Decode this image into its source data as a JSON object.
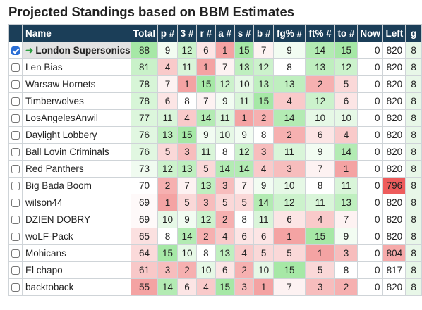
{
  "title": "Projected Standings based on BBM Estimates",
  "headers": {
    "name": "Name",
    "total": "Total",
    "p": "p #",
    "three": "3 #",
    "r": "r #",
    "a": "a #",
    "s": "s #",
    "b": "b #",
    "fg": "fg% #",
    "ft": "ft% #",
    "to": "to #",
    "now": "Now",
    "left": "Left",
    "extra": "g"
  },
  "colors": {
    "header_bg": "#1b3e58",
    "high": "#a6e8a6",
    "low": "#f4a3a3",
    "neutral": "#ffffff",
    "left_low": "#ee5c5c",
    "left_mid": "#f6aaaa",
    "arrow": "#2ea043"
  },
  "rows": [
    {
      "checked": true,
      "arrow": "➜",
      "name": "London Supersonics",
      "total": "88",
      "p": "9",
      "three": "12",
      "r": "6",
      "a": "1",
      "s": "15",
      "b": "7",
      "fg": "9",
      "ft": "14",
      "to": "15",
      "now": "0",
      "left": "820",
      "extra": "8"
    },
    {
      "checked": false,
      "name": "Len Bias",
      "total": "81",
      "p": "4",
      "three": "11",
      "r": "1",
      "a": "7",
      "s": "13",
      "b": "12",
      "fg": "8",
      "ft": "13",
      "to": "12",
      "now": "0",
      "left": "820",
      "extra": "8"
    },
    {
      "checked": false,
      "name": "Warsaw Hornets",
      "total": "78",
      "p": "7",
      "three": "1",
      "r": "15",
      "a": "12",
      "s": "10",
      "b": "13",
      "fg": "13",
      "ft": "2",
      "to": "5",
      "now": "0",
      "left": "820",
      "extra": "8"
    },
    {
      "checked": false,
      "name": "Timberwolves",
      "total": "78",
      "p": "6",
      "three": "8",
      "r": "7",
      "a": "9",
      "s": "11",
      "b": "15",
      "fg": "4",
      "ft": "12",
      "to": "6",
      "now": "0",
      "left": "820",
      "extra": "8"
    },
    {
      "checked": false,
      "name": "LosAngelesAnwil",
      "total": "77",
      "p": "11",
      "three": "4",
      "r": "14",
      "a": "11",
      "s": "1",
      "b": "2",
      "fg": "14",
      "ft": "10",
      "to": "10",
      "now": "0",
      "left": "820",
      "extra": "8"
    },
    {
      "checked": false,
      "name": "Daylight Lobbery",
      "total": "76",
      "p": "13",
      "three": "15",
      "r": "9",
      "a": "10",
      "s": "9",
      "b": "8",
      "fg": "2",
      "ft": "6",
      "to": "4",
      "now": "0",
      "left": "820",
      "extra": "8"
    },
    {
      "checked": false,
      "name": "Ball Lovin Criminals",
      "total": "76",
      "p": "5",
      "three": "3",
      "r": "11",
      "a": "8",
      "s": "12",
      "b": "3",
      "fg": "11",
      "ft": "9",
      "to": "14",
      "now": "0",
      "left": "820",
      "extra": "8"
    },
    {
      "checked": false,
      "name": "Red Panthers",
      "total": "73",
      "p": "12",
      "three": "13",
      "r": "5",
      "a": "14",
      "s": "14",
      "b": "4",
      "fg": "3",
      "ft": "7",
      "to": "1",
      "now": "0",
      "left": "820",
      "extra": "8"
    },
    {
      "checked": false,
      "name": "Big Bada Boom",
      "total": "70",
      "p": "2",
      "three": "7",
      "r": "13",
      "a": "3",
      "s": "7",
      "b": "9",
      "fg": "10",
      "ft": "8",
      "to": "11",
      "now": "0",
      "left": "796",
      "extra": "8"
    },
    {
      "checked": false,
      "name": "wilson44",
      "total": "69",
      "p": "1",
      "three": "5",
      "r": "3",
      "a": "5",
      "s": "5",
      "b": "14",
      "fg": "12",
      "ft": "11",
      "to": "13",
      "now": "0",
      "left": "820",
      "extra": "8"
    },
    {
      "checked": false,
      "name": "DZIEN DOBRY",
      "total": "69",
      "p": "10",
      "three": "9",
      "r": "12",
      "a": "2",
      "s": "8",
      "b": "11",
      "fg": "6",
      "ft": "4",
      "to": "7",
      "now": "0",
      "left": "820",
      "extra": "8"
    },
    {
      "checked": false,
      "name": "woLF-Pack",
      "total": "65",
      "p": "8",
      "three": "14",
      "r": "2",
      "a": "4",
      "s": "6",
      "b": "6",
      "fg": "1",
      "ft": "15",
      "to": "9",
      "now": "0",
      "left": "820",
      "extra": "8"
    },
    {
      "checked": false,
      "name": "Mohicans",
      "total": "64",
      "p": "15",
      "three": "10",
      "r": "8",
      "a": "13",
      "s": "4",
      "b": "5",
      "fg": "5",
      "ft": "1",
      "to": "3",
      "now": "0",
      "left": "804",
      "extra": "8"
    },
    {
      "checked": false,
      "name": "El chapo",
      "total": "61",
      "p": "3",
      "three": "2",
      "r": "10",
      "a": "6",
      "s": "2",
      "b": "10",
      "fg": "15",
      "ft": "5",
      "to": "8",
      "now": "0",
      "left": "817",
      "extra": "8"
    },
    {
      "checked": false,
      "name": "backtoback",
      "total": "55",
      "p": "14",
      "three": "6",
      "r": "4",
      "a": "15",
      "s": "3",
      "b": "1",
      "fg": "7",
      "ft": "3",
      "to": "2",
      "now": "0",
      "left": "820",
      "extra": "8"
    }
  ]
}
